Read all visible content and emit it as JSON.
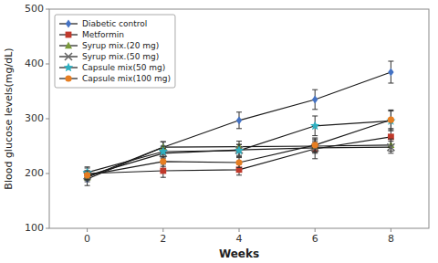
{
  "chart_data": {
    "type": "line",
    "x": [
      0,
      2,
      4,
      6,
      8
    ],
    "series": [
      {
        "name": "Diabetic control",
        "color": "#4472c4",
        "marker": "diamond",
        "values": [
          190,
          248,
          297,
          335,
          385
        ],
        "errors": [
          12,
          10,
          15,
          18,
          20
        ]
      },
      {
        "name": "Metformin",
        "color": "#c0392b",
        "marker": "square",
        "values": [
          200,
          205,
          207,
          245,
          267
        ],
        "errors": [
          10,
          12,
          10,
          18,
          15
        ]
      },
      {
        "name": "Syrup mix.(20 mg)",
        "color": "#7a9a3a",
        "marker": "triangle",
        "values": [
          193,
          248,
          249,
          250,
          252
        ],
        "errors": [
          8,
          10,
          10,
          10,
          11
        ]
      },
      {
        "name": "Syrup mix.(50 mg)",
        "color": "#666666",
        "marker": "x",
        "values": [
          196,
          237,
          243,
          247,
          248
        ],
        "errors": [
          8,
          9,
          10,
          10,
          11
        ]
      },
      {
        "name": "Capsule mix(50 mg)",
        "color": "#2eafc0",
        "marker": "star",
        "values": [
          202,
          240,
          242,
          287,
          296
        ],
        "errors": [
          10,
          10,
          11,
          18,
          18
        ]
      },
      {
        "name": "Capsule mix(100 mg)",
        "color": "#e67e22",
        "marker": "circle",
        "values": [
          197,
          222,
          220,
          252,
          298
        ],
        "errors": [
          8,
          9,
          9,
          13,
          18
        ]
      }
    ],
    "xlabel": "Weeks",
    "ylabel": "Blood glucose levels(mg/dL)",
    "xlim": [
      -1,
      9
    ],
    "xticks": [
      0,
      2,
      4,
      6,
      8
    ],
    "ylim": [
      100,
      500
    ],
    "yticks": [
      100,
      200,
      300,
      400,
      500
    ],
    "grid": false,
    "legend": "upper left"
  }
}
